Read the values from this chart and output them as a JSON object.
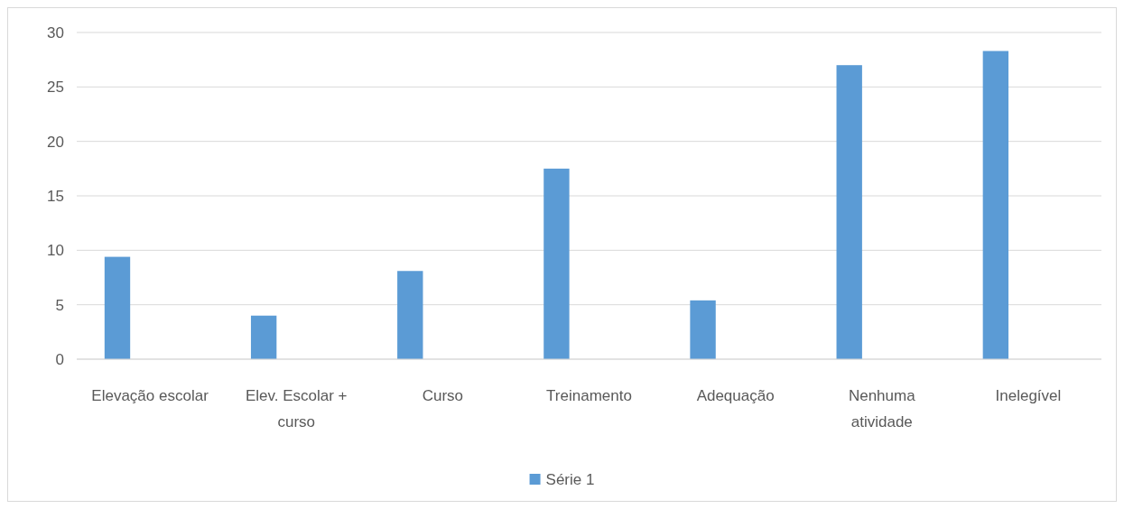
{
  "chart_data": {
    "type": "bar",
    "categories": [
      "Elevação escolar",
      "Elev. Escolar + curso",
      "Curso",
      "Treinamento",
      "Adequação",
      "Nenhuma atividade",
      "Inelegível"
    ],
    "series": [
      {
        "name": "Série 1",
        "color": "#5b9bd5",
        "values": [
          9.4,
          4.0,
          8.1,
          17.5,
          5.4,
          27.0,
          28.3
        ]
      }
    ],
    "ylim": [
      0,
      30
    ],
    "yticks": [
      0,
      5,
      10,
      15,
      20,
      25,
      30
    ],
    "grid": "y",
    "legend": "bottom"
  }
}
